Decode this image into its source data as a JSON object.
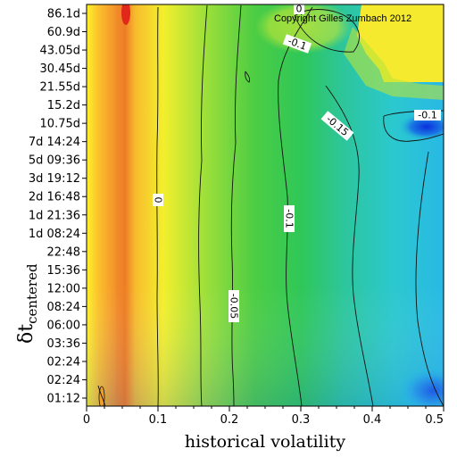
{
  "chart_data": {
    "type": "heatmap",
    "title": "",
    "xlabel": "historical volatility",
    "ylabel_main": "δt",
    "ylabel_sub": "centered",
    "copyright": "Copyright Gilles Zumbach 2012",
    "xlim": [
      0,
      0.5
    ],
    "x_ticks": [
      "0",
      "0.1",
      "0.2",
      "0.3",
      "0.4",
      "0.5"
    ],
    "x_tick_values": [
      0,
      0.1,
      0.2,
      0.3,
      0.4,
      0.5
    ],
    "y_ticks": [
      "01:12",
      "02:24",
      "02:24",
      "03:36",
      "06:00",
      "08:24",
      "12:00",
      "15:36",
      "22:48",
      "1d 08:24",
      "1d 21:36",
      "2d 16:48",
      "3d 19:12",
      "5d 09:36",
      "7d 14:24",
      "10.75d",
      "15.2d",
      "21.55d",
      "30.45d",
      "43.05d",
      "60.9d",
      "86.1d"
    ],
    "colorscale": [
      "#e8281a",
      "#f79a2a",
      "#fff12a",
      "#8edc3c",
      "#2ec44a",
      "#26c9c0",
      "#0a3ce0"
    ],
    "contour_labels": [
      "0",
      "0",
      "-0.05",
      "-0.1",
      "-0.1",
      "-0.15",
      "-0.1",
      "-0.1"
    ],
    "grid": false,
    "legend": "none"
  }
}
